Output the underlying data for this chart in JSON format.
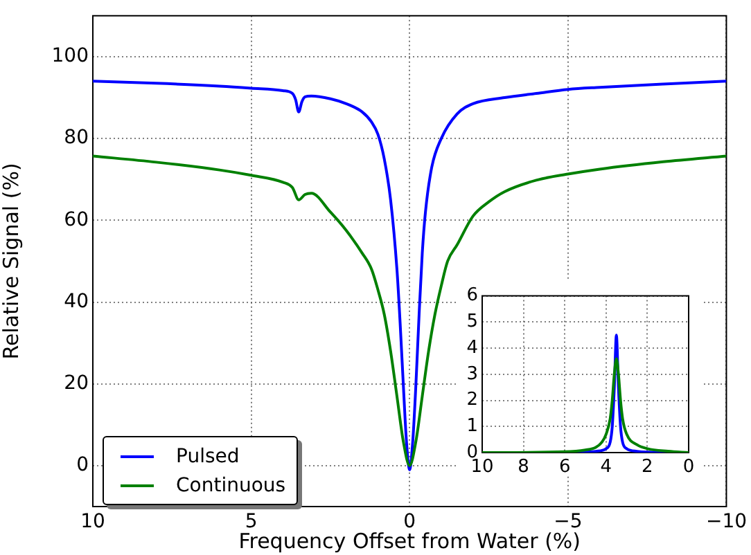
{
  "chart_data": [
    {
      "type": "line",
      "xlabel": "Frequency Offset from Water (%)",
      "ylabel": "Relative Signal (%)",
      "xlim": [
        10,
        -10
      ],
      "xticks": [
        10,
        5,
        0,
        {
          "value": -5,
          "label": "−5"
        },
        {
          "value": -10,
          "label": "−10"
        }
      ],
      "ylim": [
        -10,
        110
      ],
      "yticks": [
        0,
        20,
        40,
        60,
        80,
        100
      ],
      "grid": true,
      "legend": "bottom left",
      "marker": "none",
      "line_style": "solid",
      "series": [
        {
          "name": "Pulsed",
          "color": "#0000ff",
          "x": [
            10,
            8,
            6,
            5,
            4,
            3.7,
            3.6,
            3.5,
            3.4,
            3.3,
            3.1,
            2.5,
            2,
            1.5,
            1.2,
            1,
            0.8,
            0.6,
            0.4,
            0.3,
            0.2,
            0.1,
            0,
            -0.1,
            -0.2,
            -0.3,
            -0.4,
            -0.5,
            -0.7,
            -1,
            -1.5,
            -2,
            -3,
            -4,
            -5,
            -6,
            -8,
            -10
          ],
          "values": [
            94,
            93.5,
            92.8,
            92.3,
            91.7,
            91,
            89.5,
            86.5,
            89,
            90.2,
            90.4,
            89.7,
            88.5,
            86.5,
            84,
            81,
            75,
            65,
            48,
            35,
            20,
            6,
            -1,
            6,
            20,
            37,
            52,
            62,
            73,
            80,
            86,
            88.5,
            90,
            91,
            92,
            92.5,
            93.3,
            94
          ]
        },
        {
          "name": "Continuous",
          "color": "#008000",
          "x": [
            10,
            8,
            6,
            5,
            4,
            3.7,
            3.5,
            3.3,
            3.1,
            2.5,
            2,
            1.5,
            1.2,
            1,
            0.8,
            0.6,
            0.4,
            0.2,
            0,
            -0.2,
            -0.4,
            -0.6,
            -0.8,
            -1,
            -1.2,
            -1.5,
            -2,
            -2.5,
            -3,
            -4,
            -5,
            -6,
            -8,
            -10
          ],
          "values": [
            75.7,
            74.2,
            72.3,
            71,
            69.3,
            68,
            65,
            66.3,
            66.6,
            62,
            57.5,
            52,
            48,
            43,
            37,
            28,
            17,
            6,
            0,
            6,
            17,
            28,
            37,
            44,
            50,
            54,
            61,
            64.5,
            67,
            69.8,
            71.3,
            72.5,
            74.3,
            75.7
          ]
        }
      ]
    },
    {
      "type": "line",
      "xlim": [
        10,
        0
      ],
      "xticks": [
        10,
        8,
        6,
        4,
        2,
        0
      ],
      "ylim": [
        0,
        6
      ],
      "yticks": [
        0,
        1,
        2,
        3,
        4,
        5,
        6
      ],
      "grid": true,
      "marker": "none",
      "line_style": "solid",
      "series": [
        {
          "color": "#0000ff",
          "x": [
            10,
            6,
            5,
            4.5,
            4,
            3.8,
            3.7,
            3.6,
            3.5,
            3.4,
            3.3,
            3.2,
            3,
            2.5,
            2,
            0
          ],
          "values": [
            0,
            0,
            0.02,
            0.05,
            0.15,
            0.4,
            1,
            2.5,
            4.5,
            2.5,
            1,
            0.4,
            0.15,
            0.05,
            0.02,
            0
          ]
        },
        {
          "color": "#008000",
          "x": [
            10,
            6,
            5,
            4.5,
            4.2,
            4,
            3.8,
            3.7,
            3.6,
            3.5,
            3.4,
            3.3,
            3.2,
            3,
            2.5,
            2,
            1,
            0
          ],
          "values": [
            0,
            0.03,
            0.1,
            0.2,
            0.4,
            0.7,
            1.3,
            2,
            3,
            3.6,
            3,
            2,
            1.3,
            0.7,
            0.3,
            0.15,
            0.05,
            0
          ]
        }
      ]
    }
  ]
}
